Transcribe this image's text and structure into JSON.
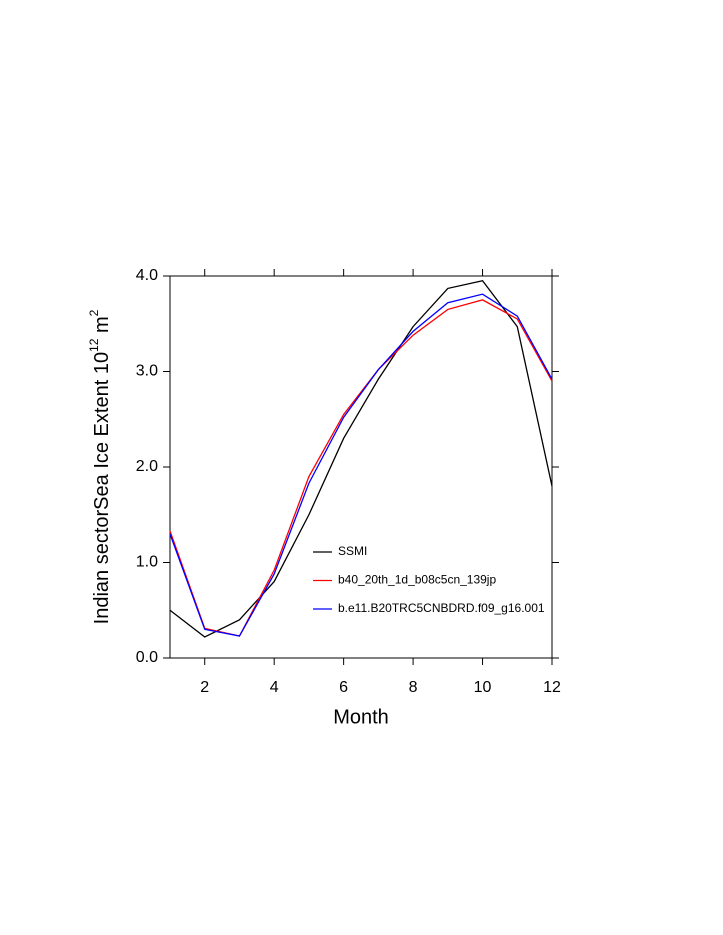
{
  "chart_data": {
    "type": "line",
    "x_label": "Month",
    "y_label": {
      "text": "Indian sectorSea Ice Extent 10",
      "exponent": "12",
      "unit": " m",
      "unit_exponent": "2"
    },
    "x": [
      1,
      2,
      3,
      4,
      5,
      6,
      7,
      8,
      9,
      10,
      11,
      12
    ],
    "xlim": [
      1,
      12
    ],
    "xticks": [
      2,
      4,
      6,
      8,
      10,
      12
    ],
    "ylim": [
      0,
      4
    ],
    "yticks": [
      {
        "value": 0,
        "label": "0.0"
      },
      {
        "value": 1,
        "label": "1.0"
      },
      {
        "value": 2,
        "label": "2.0"
      },
      {
        "value": 3,
        "label": "3.0"
      },
      {
        "value": 4,
        "label": "4.0"
      }
    ],
    "series": [
      {
        "name": "SSMI",
        "color": "#000000",
        "values": [
          0.5,
          0.22,
          0.4,
          0.8,
          1.5,
          2.3,
          2.92,
          3.47,
          3.87,
          3.95,
          3.47,
          1.8
        ]
      },
      {
        "name": "b40_20th_1d_b08c5cn_139jp",
        "color": "#ff0000",
        "values": [
          1.33,
          0.31,
          0.23,
          0.92,
          1.9,
          2.55,
          3.02,
          3.38,
          3.65,
          3.75,
          3.55,
          2.9
        ]
      },
      {
        "name": "b.e11.B20TRC5CNBDRD.f09_g16.001",
        "color": "#0000ff",
        "values": [
          1.3,
          0.3,
          0.23,
          0.88,
          1.83,
          2.52,
          3.02,
          3.42,
          3.72,
          3.81,
          3.58,
          2.92
        ]
      }
    ]
  }
}
